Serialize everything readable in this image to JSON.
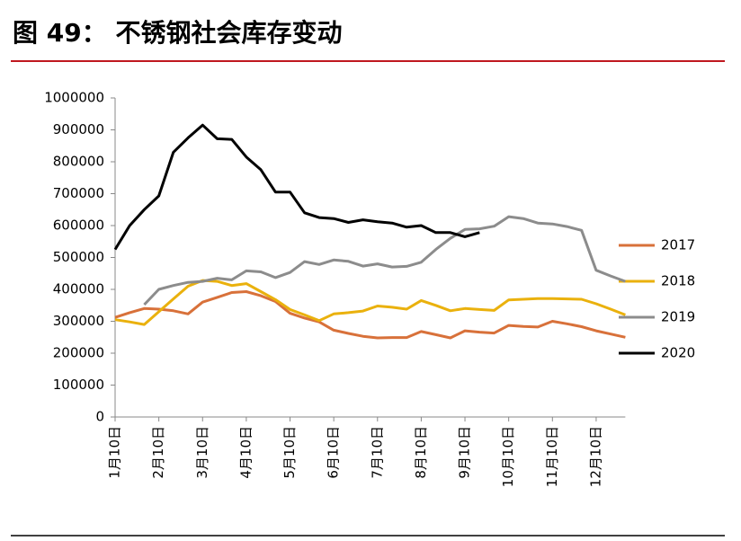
{
  "chart_data": {
    "type": "line",
    "title": "图 49：  不锈钢社会库存变动",
    "categories": [
      "1月10日",
      null,
      null,
      "2月10日",
      null,
      null,
      "3月10日",
      null,
      null,
      "4月10日",
      null,
      null,
      "5月10日",
      null,
      null,
      "6月10日",
      null,
      null,
      "7月10日",
      null,
      null,
      "8月10日",
      null,
      null,
      "9月10日",
      null,
      null,
      "10月10日",
      null,
      null,
      "11月10日",
      null,
      null,
      "12月10日",
      null,
      null
    ],
    "series": [
      {
        "name": "2017",
        "color": "#d8713a",
        "values": [
          312000,
          327000,
          340000,
          338000,
          333000,
          323000,
          360000,
          375000,
          390000,
          393000,
          380000,
          362000,
          325000,
          310000,
          298000,
          272000,
          262000,
          253000,
          248000,
          249000,
          249000,
          268000,
          258000,
          248000,
          270000,
          266000,
          263000,
          287000,
          284000,
          282000,
          300000,
          292000,
          283000,
          270000,
          260000,
          250000
        ]
      },
      {
        "name": "2018",
        "color": "#eab10d",
        "values": [
          305000,
          298000,
          290000,
          330000,
          370000,
          410000,
          428000,
          425000,
          412000,
          418000,
          393000,
          368000,
          337000,
          320000,
          302000,
          323000,
          327000,
          332000,
          348000,
          344000,
          338000,
          365000,
          350000,
          333000,
          340000,
          337000,
          334000,
          367000,
          369000,
          371000,
          371000,
          370000,
          369000,
          355000,
          338000,
          320000
        ]
      },
      {
        "name": "2019",
        "color": "#8c8c8c",
        "values": [
          null,
          null,
          352000,
          400000,
          412000,
          422000,
          425000,
          435000,
          430000,
          458000,
          455000,
          437000,
          453000,
          487000,
          478000,
          492000,
          488000,
          473000,
          480000,
          470000,
          472000,
          485000,
          525000,
          560000,
          588000,
          590000,
          598000,
          628000,
          622000,
          608000,
          605000,
          597000,
          585000,
          460000,
          442000,
          425000
        ]
      },
      {
        "name": "2020",
        "color": "#000000",
        "values": [
          525000,
          600000,
          650000,
          693000,
          830000,
          875000,
          915000,
          872000,
          870000,
          815000,
          775000,
          705000,
          705000,
          640000,
          625000,
          622000,
          610000,
          618000,
          612000,
          608000,
          595000,
          600000,
          578000,
          578000,
          565000,
          578000,
          null,
          null,
          null,
          null,
          null,
          null,
          null,
          null,
          null,
          null
        ]
      }
    ],
    "ylim": [
      0,
      1000000
    ],
    "yticks": [
      0,
      100000,
      200000,
      300000,
      400000,
      500000,
      600000,
      700000,
      800000,
      900000,
      1000000
    ]
  }
}
